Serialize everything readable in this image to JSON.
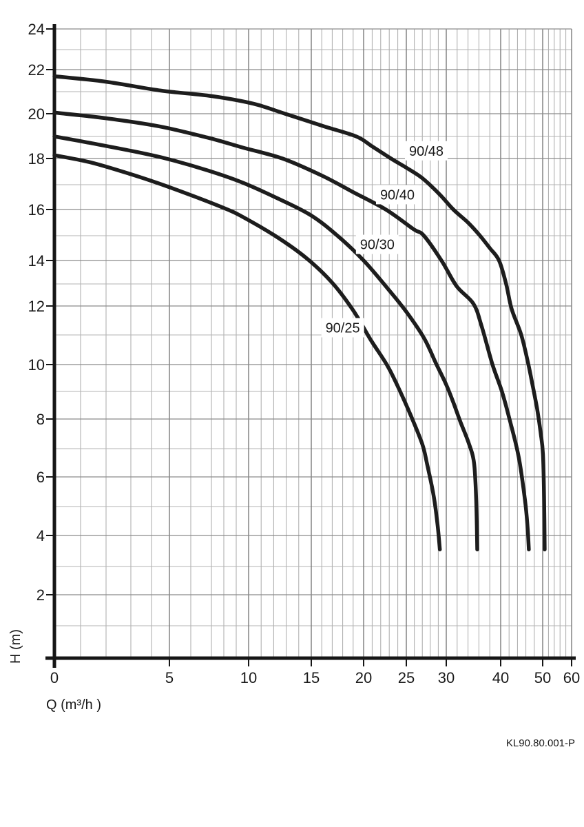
{
  "footer": {
    "code": "KL90.80.001-P"
  },
  "chart_data": {
    "type": "line",
    "title": "",
    "xlabel": "Q (m³/h )",
    "ylabel": "H (m)",
    "xlim": [
      0,
      60
    ],
    "ylim": [
      0,
      24
    ],
    "grid": true,
    "legend_position": "inline-labels",
    "x_ticks": [
      0,
      5,
      10,
      15,
      20,
      25,
      30,
      40,
      50,
      60
    ],
    "y_ticks": [
      2,
      4,
      6,
      8,
      10,
      12,
      14,
      16,
      18,
      20,
      22,
      24
    ],
    "x_minor": [
      1,
      2,
      3,
      4,
      6,
      7,
      8,
      9,
      11,
      12,
      13,
      14,
      16,
      17,
      18,
      19,
      21,
      22,
      23,
      24,
      26,
      27,
      28,
      29,
      32,
      34,
      36,
      38,
      42,
      44,
      46,
      48,
      52,
      54,
      56,
      58
    ],
    "y_minor": [
      1,
      3,
      5,
      7,
      9,
      11,
      13,
      15,
      17,
      19,
      21,
      23
    ],
    "axis_calibration": {
      "x_anchors": {
        "0": 79,
        "1": 117,
        "2": 154,
        "3": 190,
        "4": 220,
        "5": 246,
        "6": 277,
        "7": 307,
        "8": 325,
        "9": 343,
        "10": 361,
        "15": 452,
        "20": 528,
        "25": 590,
        "30": 648,
        "40": 727,
        "50": 788,
        "60": 830
      },
      "y_anchors": {
        "0": 955,
        "1": 908,
        "2": 863,
        "3": 822,
        "4": 777,
        "5": 735,
        "6": 692,
        "7": 651,
        "8": 608,
        "9": 568,
        "10": 529,
        "11": 486,
        "12": 444,
        "13": 412,
        "14": 378,
        "15": 342,
        "16": 304,
        "17": 268,
        "18": 230,
        "19": 198,
        "20": 165,
        "21": 133,
        "22": 101,
        "23": 72,
        "24": 42
      }
    },
    "colors": {
      "curve": "#1d1d1d",
      "axis": "#161616",
      "grid_major_h": "#8a8a8a",
      "grid_minor_h": "#b3b3b3",
      "grid_major_v": "#7a7a7a",
      "grid_minor_v": "#a9a9a9",
      "label_box": "#ffffff",
      "text": "#1a1a1a"
    },
    "series": [
      {
        "name": "90/48",
        "label_at": [
          27.5,
          18.35
        ],
        "points": [
          [
            0,
            21.7
          ],
          [
            2,
            21.45
          ],
          [
            4.5,
            21.05
          ],
          [
            7,
            20.8
          ],
          [
            10.4,
            20.45
          ],
          [
            12.9,
            20.0
          ],
          [
            16.2,
            19.45
          ],
          [
            19.3,
            19.0
          ],
          [
            21,
            18.55
          ],
          [
            23.2,
            18.0
          ],
          [
            25,
            17.65
          ],
          [
            27,
            17.25
          ],
          [
            29.2,
            16.6
          ],
          [
            31.3,
            16.0
          ],
          [
            34,
            15.5
          ],
          [
            36.2,
            15.0
          ],
          [
            38,
            14.5
          ],
          [
            39.7,
            14.0
          ],
          [
            41.3,
            13.0
          ],
          [
            42.6,
            11.9
          ],
          [
            44.9,
            11.0
          ],
          [
            46.6,
            10.0
          ],
          [
            47.7,
            9.15
          ],
          [
            48.7,
            8.35
          ],
          [
            49.5,
            7.55
          ],
          [
            50.1,
            6.8
          ],
          [
            50.5,
            5.2
          ],
          [
            50.7,
            3.55
          ]
        ]
      },
      {
        "name": "90/40",
        "label_at": [
          23.95,
          16.6
        ],
        "points": [
          [
            0,
            20.05
          ],
          [
            2,
            19.8
          ],
          [
            4.4,
            19.45
          ],
          [
            6.8,
            18.95
          ],
          [
            9.5,
            18.5
          ],
          [
            12.7,
            18.0
          ],
          [
            16,
            17.35
          ],
          [
            19,
            16.7
          ],
          [
            22.6,
            16.0
          ],
          [
            25.9,
            15.25
          ],
          [
            27.2,
            15.0
          ],
          [
            29.4,
            14.0
          ],
          [
            31.9,
            12.9
          ],
          [
            35,
            12.1
          ],
          [
            36.5,
            11.3
          ],
          [
            38.5,
            10.0
          ],
          [
            40.3,
            9.0
          ],
          [
            42.1,
            8.0
          ],
          [
            44.3,
            6.7
          ],
          [
            45.8,
            5.2
          ],
          [
            46.4,
            4.3
          ],
          [
            46.7,
            3.55
          ]
        ]
      },
      {
        "name": "90/30",
        "label_at": [
          21.6,
          14.65
        ],
        "points": [
          [
            0,
            19.0
          ],
          [
            1.4,
            18.7
          ],
          [
            3,
            18.35
          ],
          [
            4.8,
            18.0
          ],
          [
            6.8,
            17.55
          ],
          [
            9.4,
            17.1
          ],
          [
            12.1,
            16.5
          ],
          [
            14.9,
            15.8
          ],
          [
            17.5,
            15.0
          ],
          [
            20,
            14.0
          ],
          [
            22.8,
            12.8
          ],
          [
            25,
            11.8
          ],
          [
            27.2,
            10.9
          ],
          [
            28.7,
            10.05
          ],
          [
            30,
            9.25
          ],
          [
            31.3,
            8.6
          ],
          [
            32.5,
            7.95
          ],
          [
            34.1,
            7.2
          ],
          [
            35.1,
            6.5
          ],
          [
            35.5,
            5.2
          ],
          [
            35.7,
            3.55
          ]
        ]
      },
      {
        "name": "90/25",
        "label_at": [
          18.0,
          11.25
        ],
        "points": [
          [
            0,
            18.15
          ],
          [
            1.4,
            17.85
          ],
          [
            3,
            17.4
          ],
          [
            4.4,
            17.05
          ],
          [
            6.1,
            16.55
          ],
          [
            8.3,
            16.0
          ],
          [
            9.4,
            15.75
          ],
          [
            12.1,
            15.0
          ],
          [
            14.6,
            14.1
          ],
          [
            17,
            13.05
          ],
          [
            19,
            11.85
          ],
          [
            20.8,
            10.85
          ],
          [
            22.8,
            9.95
          ],
          [
            24.2,
            9.05
          ],
          [
            25.6,
            8.1
          ],
          [
            27,
            7.15
          ],
          [
            27.6,
            6.45
          ],
          [
            28.4,
            5.4
          ],
          [
            28.9,
            4.4
          ],
          [
            29.2,
            3.55
          ]
        ]
      }
    ]
  }
}
